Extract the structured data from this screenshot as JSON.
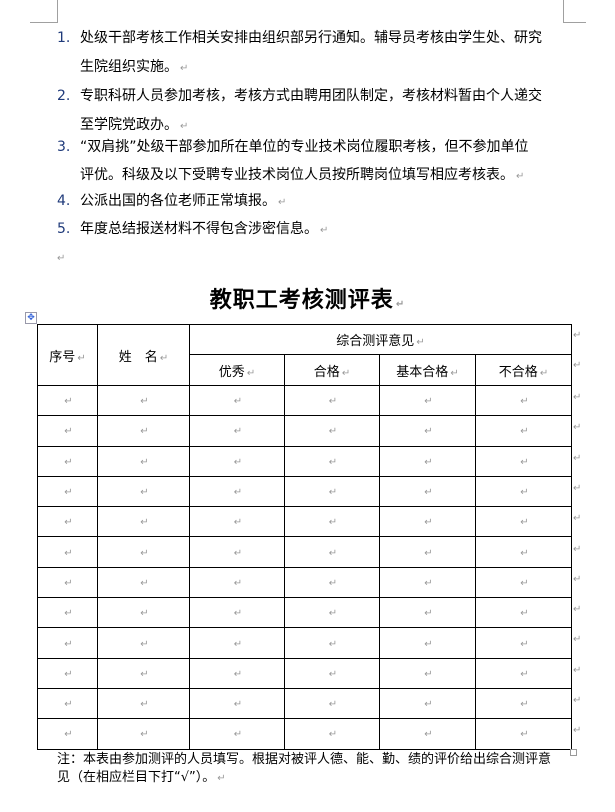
{
  "list": [
    {
      "num": "1.",
      "lines": [
        "处级干部考核工作相关安排由组织部另行通知。辅导员考核由学生处、研究",
        "生院组织实施。"
      ]
    },
    {
      "num": "2.",
      "lines": [
        "专职科研人员参加考核，考核方式由聘用团队制定，考核材料暂由个人递交",
        "至学院党政办。"
      ]
    },
    {
      "num": "3.",
      "lines": [
        "“双肩挑”处级干部参加所在单位的专业技术岗位履职考核，但不参加单位",
        "评优。科级及以下受聘专业技术岗位人员按所聘岗位填写相应考核表。"
      ]
    },
    {
      "num": "4.",
      "lines": [
        "公派出国的各位老师正常填报。"
      ]
    },
    {
      "num": "5.",
      "lines": [
        "年度总结报送材料不得包含涉密信息。"
      ]
    }
  ],
  "title": "教职工考核测评表",
  "table": {
    "col_seq": "序号",
    "col_name": "姓　名",
    "group": "综合测评意见",
    "sub": [
      "优秀",
      "合格",
      "基本合格",
      "不合格"
    ],
    "row_count": 12
  },
  "note": "注：本表由参加测评的人员填写。根据对被评人德、能、勤、绩的评价给出综合测评意见（在相应栏目下打“√”）。",
  "para_mark": "↵"
}
